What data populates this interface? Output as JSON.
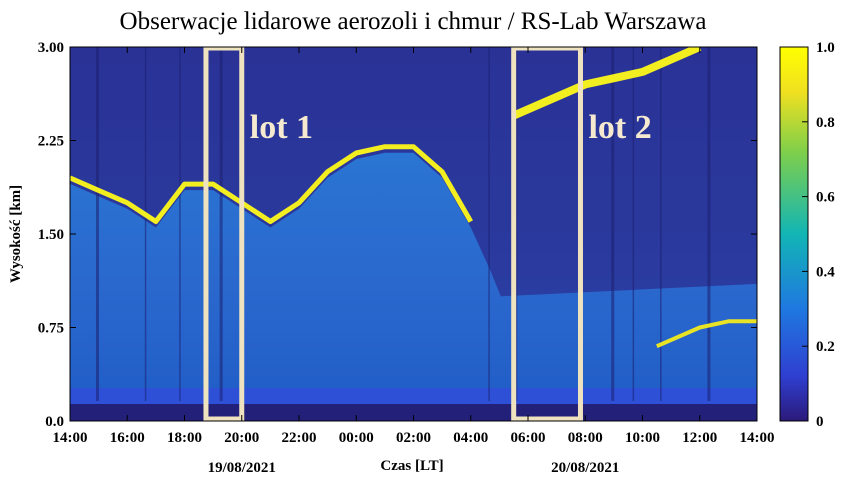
{
  "chart_data": {
    "type": "heatmap",
    "title": "Obserwacje lidarowe aerozoli i chmur / RS-Lab Warszawa",
    "xlabel": "Czas [LT]",
    "ylabel": "Wysokość [km]",
    "x_ticks": [
      "14:00",
      "16:00",
      "18:00",
      "20:00",
      "22:00",
      "00:00",
      "02:00",
      "04:00",
      "06:00",
      "08:00",
      "10:00",
      "12:00",
      "14:00"
    ],
    "x_range": [
      "2021-08-19 14:00",
      "2021-08-20 14:00"
    ],
    "dates": [
      {
        "label": "19/08/2021",
        "at": "2021-08-19 20:00"
      },
      {
        "label": "20/08/2021",
        "at": "2021-08-20 08:00"
      }
    ],
    "y_ticks": [
      "0.0",
      "0.75",
      "1.50",
      "2.25",
      "3.00"
    ],
    "ylim": [
      0,
      3.0
    ],
    "colorbar": {
      "ticks": [
        "0",
        "0.2",
        "0.4",
        "0.6",
        "0.8",
        "1.0"
      ],
      "range": [
        0,
        1.0
      ],
      "colormap": [
        "#2b1a7a",
        "#2f3fd0",
        "#1f78e0",
        "#12b5b5",
        "#7fcf4a",
        "#f0e020",
        "#ffff00"
      ]
    },
    "flights": [
      {
        "label": "lot 1",
        "start": "2021-08-19 18:45",
        "end": "2021-08-19 20:00"
      },
      {
        "label": "lot 2",
        "start": "2021-08-20 05:30",
        "end": "2021-08-20 07:50"
      }
    ],
    "layer_top_km": [
      {
        "t": "2021-08-19 14:00",
        "z": 1.95
      },
      {
        "t": "2021-08-19 15:00",
        "z": 1.85
      },
      {
        "t": "2021-08-19 16:00",
        "z": 1.75
      },
      {
        "t": "2021-08-19 17:00",
        "z": 1.6
      },
      {
        "t": "2021-08-19 18:00",
        "z": 1.9
      },
      {
        "t": "2021-08-19 19:00",
        "z": 1.9
      },
      {
        "t": "2021-08-19 20:00",
        "z": 1.75
      },
      {
        "t": "2021-08-19 21:00",
        "z": 1.6
      },
      {
        "t": "2021-08-19 22:00",
        "z": 1.75
      },
      {
        "t": "2021-08-19 23:00",
        "z": 2.0
      },
      {
        "t": "2021-08-20 00:00",
        "z": 2.15
      },
      {
        "t": "2021-08-20 01:00",
        "z": 2.2
      },
      {
        "t": "2021-08-20 02:00",
        "z": 2.2
      },
      {
        "t": "2021-08-20 03:00",
        "z": 2.0
      },
      {
        "t": "2021-08-20 04:00",
        "z": 1.6
      }
    ],
    "upper_cloud_km": [
      {
        "t": "2021-08-20 05:30",
        "z": 2.45
      },
      {
        "t": "2021-08-20 08:00",
        "z": 2.7
      },
      {
        "t": "2021-08-20 09:00",
        "z": 2.75
      },
      {
        "t": "2021-08-20 10:00",
        "z": 2.8
      },
      {
        "t": "2021-08-20 11:00",
        "z": 2.9
      },
      {
        "t": "2021-08-20 12:00",
        "z": 3.0
      }
    ],
    "low_cloud_km": [
      {
        "t": "2021-08-20 10:30",
        "z": 0.6
      },
      {
        "t": "2021-08-20 12:00",
        "z": 0.75
      },
      {
        "t": "2021-08-20 13:00",
        "z": 0.8
      },
      {
        "t": "2021-08-20 14:00",
        "z": 0.8
      }
    ],
    "grid": false
  }
}
